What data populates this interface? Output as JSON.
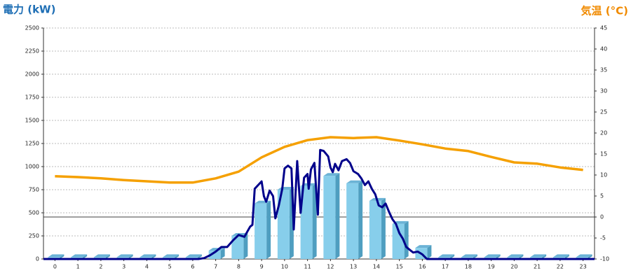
{
  "chart_data": {
    "type": "combo",
    "y_label": "電力 (kW)",
    "y2_label": "気温 (°C)",
    "xlim": [
      -0.5,
      23.5
    ],
    "xticks": [
      0,
      1,
      2,
      3,
      4,
      5,
      6,
      7,
      8,
      9,
      10,
      11,
      12,
      13,
      14,
      15,
      16,
      17,
      18,
      19,
      20,
      21,
      22,
      23
    ],
    "ylim": [
      0,
      2500
    ],
    "yticks": [
      0,
      250,
      500,
      750,
      1000,
      1250,
      1500,
      1750,
      2000,
      2250,
      2500
    ],
    "y2lim": [
      -10,
      45
    ],
    "y2ticks": [
      -10,
      -5,
      0,
      5,
      10,
      15,
      20,
      25,
      30,
      35,
      40,
      45
    ],
    "grid": true,
    "series": [
      {
        "type": "bar",
        "color": "#87ceeb",
        "x": [
          0,
          1,
          2,
          3,
          4,
          5,
          6,
          7,
          8,
          9,
          10,
          11,
          12,
          13,
          14,
          15,
          16,
          17,
          18,
          19,
          20,
          21,
          22,
          23
        ],
        "values": [
          20,
          20,
          20,
          20,
          20,
          20,
          20,
          90,
          250,
          600,
          750,
          790,
          900,
          820,
          630,
          380,
          120,
          20,
          20,
          20,
          20,
          20,
          20,
          20
        ]
      },
      {
        "type": "line",
        "color": "#00008b",
        "x": [
          -0.5,
          6.25,
          6.5,
          6.75,
          7,
          7.25,
          7.5,
          7.75,
          8,
          8.25,
          8.5,
          8.6,
          8.7,
          8.85,
          9,
          9.1,
          9.2,
          9.35,
          9.5,
          9.6,
          9.75,
          9.9,
          10,
          10.15,
          10.3,
          10.4,
          10.55,
          10.7,
          10.85,
          11,
          11.05,
          11.15,
          11.3,
          11.45,
          11.55,
          11.7,
          11.9,
          12,
          12.1,
          12.2,
          12.35,
          12.5,
          12.7,
          12.85,
          13,
          13.2,
          13.35,
          13.5,
          13.65,
          13.8,
          13.95,
          14.1,
          14.25,
          14.4,
          14.55,
          14.7,
          14.85,
          15,
          15.15,
          15.3,
          15.45,
          15.6,
          15.8,
          16,
          16.2,
          23.5
        ],
        "values": [
          0,
          0,
          10,
          40,
          80,
          130,
          130,
          200,
          260,
          240,
          350,
          370,
          760,
          800,
          840,
          680,
          620,
          740,
          680,
          440,
          580,
          760,
          980,
          1010,
          980,
          320,
          1060,
          500,
          880,
          920,
          760,
          970,
          1040,
          480,
          1180,
          1170,
          1110,
          990,
          940,
          1030,
          960,
          1060,
          1080,
          1040,
          950,
          920,
          870,
          800,
          840,
          760,
          700,
          580,
          560,
          600,
          510,
          430,
          380,
          280,
          220,
          130,
          100,
          70,
          80,
          50,
          0,
          0
        ]
      },
      {
        "type": "line",
        "axis": "y2",
        "color": "#f5a000",
        "x": [
          0,
          1,
          2,
          3,
          4,
          5,
          6,
          7,
          8,
          9,
          10,
          11,
          12,
          13,
          14,
          15,
          16,
          17,
          18,
          19,
          20,
          21,
          22,
          23
        ],
        "values": [
          9.7,
          9.5,
          9.2,
          8.8,
          8.5,
          8.2,
          8.2,
          9.2,
          10.8,
          14.2,
          16.7,
          18.3,
          19,
          18.8,
          19,
          18.2,
          17.3,
          16.3,
          15.7,
          14.3,
          13,
          12.7,
          11.8,
          11.2
        ]
      }
    ]
  }
}
